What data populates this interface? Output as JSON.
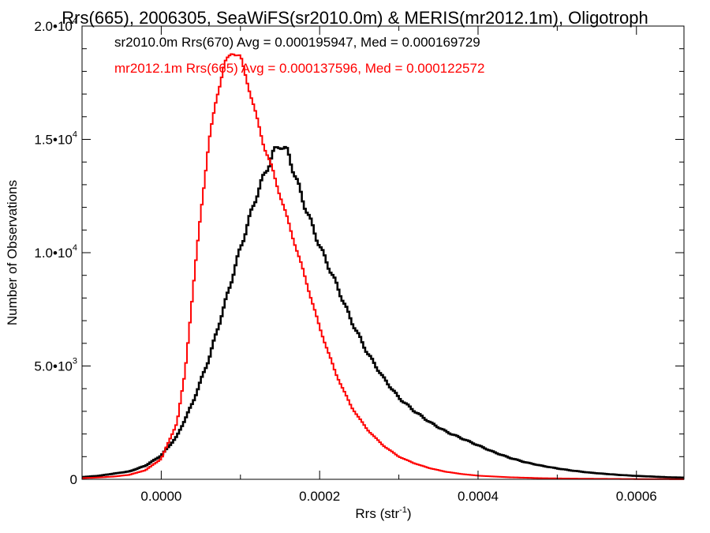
{
  "chart_data": {
    "type": "histogram",
    "title": "Rrs(665), 2006305, SeaWiFS(sr2010.0m) & MERIS(mr2012.1m), Oligotroph",
    "xlabel": "Rrs (str",
    "xlabel_sup": "-1",
    "xlabel_end": ")",
    "ylabel": "Number of Observations",
    "xlim": [
      -0.0001,
      0.00066
    ],
    "ylim": [
      0,
      20000
    ],
    "x_ticks": [
      {
        "value": 0.0,
        "label": "0.0000"
      },
      {
        "value": 0.0002,
        "label": "0.0002"
      },
      {
        "value": 0.0004,
        "label": "0.0004"
      },
      {
        "value": 0.0006,
        "label": "0.0006"
      }
    ],
    "y_ticks": [
      {
        "value": 0,
        "base": "0",
        "exp": ""
      },
      {
        "value": 5000,
        "base": "5.0•10",
        "exp": "3"
      },
      {
        "value": 10000,
        "base": "1.0•10",
        "exp": "4"
      },
      {
        "value": 15000,
        "base": "1.5•10",
        "exp": "4"
      },
      {
        "value": 20000,
        "base": "2.0•10",
        "exp": "4"
      }
    ],
    "grid": false,
    "legend_position": "top-left",
    "series": [
      {
        "name": "sr2010.0m Rrs(670) Avg = 0.000195947, Med = 0.000169729",
        "color": "#000000",
        "stroke": 2.6,
        "curve": [
          [
            -0.0001,
            100
          ],
          [
            -8e-05,
            150
          ],
          [
            -6e-05,
            250
          ],
          [
            -4e-05,
            350
          ],
          [
            -2e-05,
            600
          ],
          [
            0.0,
            1050
          ],
          [
            2e-05,
            1900
          ],
          [
            4e-05,
            3400
          ],
          [
            6e-05,
            5300
          ],
          [
            8e-05,
            7700
          ],
          [
            0.0001,
            10200
          ],
          [
            0.00012,
            12500
          ],
          [
            0.00014,
            14300
          ],
          [
            0.00015,
            14800
          ],
          [
            0.00016,
            14400
          ],
          [
            0.00018,
            12200
          ],
          [
            0.0002,
            10300
          ],
          [
            0.00022,
            8700
          ],
          [
            0.00024,
            7000
          ],
          [
            0.00026,
            5600
          ],
          [
            0.00028,
            4500
          ],
          [
            0.0003,
            3600
          ],
          [
            0.00032,
            3000
          ],
          [
            0.00034,
            2500
          ],
          [
            0.00036,
            2100
          ],
          [
            0.00038,
            1800
          ],
          [
            0.0004,
            1500
          ],
          [
            0.00042,
            1200
          ],
          [
            0.00044,
            950
          ],
          [
            0.00046,
            750
          ],
          [
            0.00048,
            600
          ],
          [
            0.0005,
            480
          ],
          [
            0.00052,
            380
          ],
          [
            0.00054,
            300
          ],
          [
            0.00056,
            240
          ],
          [
            0.00058,
            190
          ],
          [
            0.0006,
            150
          ],
          [
            0.00062,
            120
          ],
          [
            0.00064,
            90
          ],
          [
            0.00066,
            75
          ]
        ]
      },
      {
        "name": "mr2012.1m Rrs(665) Avg = 0.000137596, Med = 0.000122572",
        "color": "#ff0000",
        "stroke": 2.0,
        "curve": [
          [
            -0.0001,
            50
          ],
          [
            -8e-05,
            80
          ],
          [
            -6e-05,
            120
          ],
          [
            -4e-05,
            200
          ],
          [
            -2e-05,
            400
          ],
          [
            0.0,
            900
          ],
          [
            2e-05,
            2500
          ],
          [
            3e-05,
            4700
          ],
          [
            4e-05,
            8300
          ],
          [
            5e-05,
            11800
          ],
          [
            6e-05,
            14800
          ],
          [
            7e-05,
            16900
          ],
          [
            8e-05,
            18300
          ],
          [
            9e-05,
            18900
          ],
          [
            0.0001,
            18600
          ],
          [
            0.00011,
            17400
          ],
          [
            0.00012,
            16000
          ],
          [
            0.00013,
            14700
          ],
          [
            0.00014,
            13700
          ],
          [
            0.00016,
            11400
          ],
          [
            0.00018,
            9100
          ],
          [
            0.0002,
            6700
          ],
          [
            0.00022,
            4700
          ],
          [
            0.00024,
            3200
          ],
          [
            0.00026,
            2200
          ],
          [
            0.00028,
            1500
          ],
          [
            0.0003,
            1000
          ],
          [
            0.00032,
            700
          ],
          [
            0.00034,
            480
          ],
          [
            0.00036,
            330
          ],
          [
            0.00038,
            230
          ],
          [
            0.0004,
            160
          ],
          [
            0.00044,
            90
          ],
          [
            0.00048,
            50
          ],
          [
            0.00052,
            30
          ],
          [
            0.00056,
            20
          ],
          [
            0.0006,
            10
          ],
          [
            0.00066,
            5
          ]
        ]
      }
    ]
  }
}
